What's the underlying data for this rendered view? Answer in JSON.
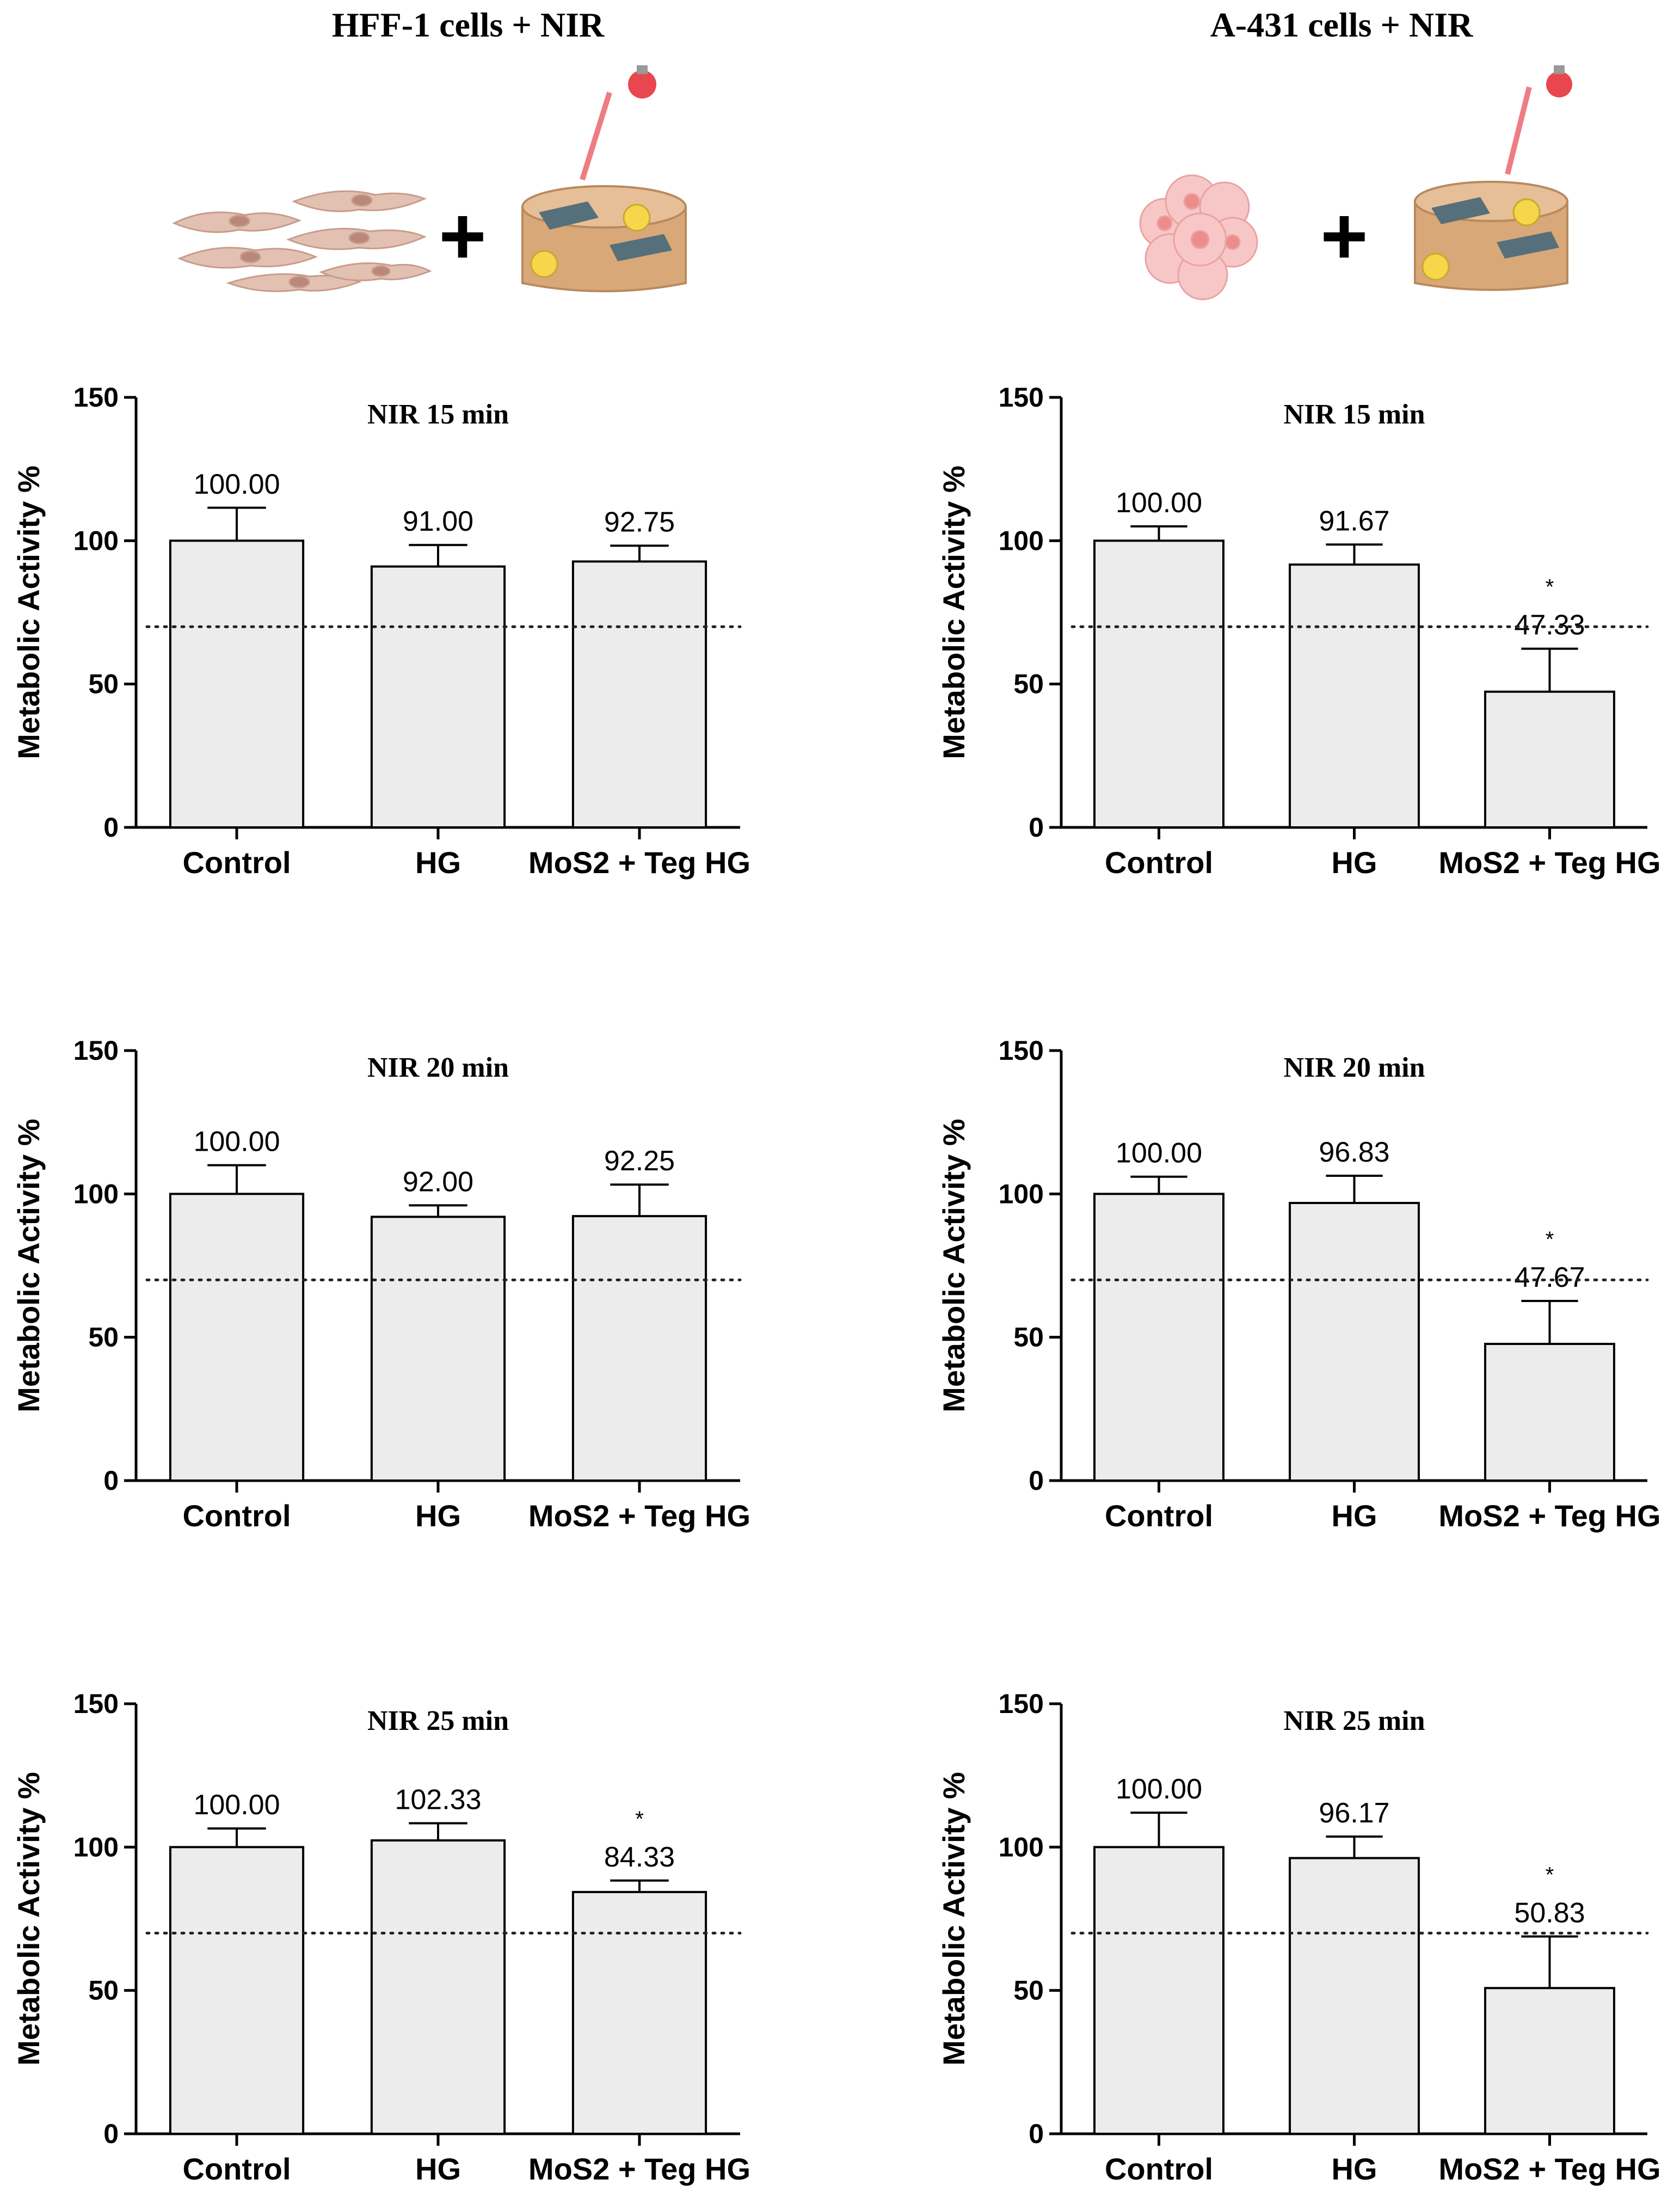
{
  "columns": [
    {
      "title": "HFF-1 cells + NIR",
      "cell_icon": "fibroblast-cells-icon"
    },
    {
      "title": "A-431 cells + NIR",
      "cell_icon": "tumor-cell-cluster-icon"
    }
  ],
  "illustration": {
    "plus_sign": "+",
    "device_icon": "hydrogel-dish-with-nir-lamp-icon",
    "bar_color": "#ececec",
    "lamp_color": "#e8474f"
  },
  "chart_data": [
    {
      "type": "bar",
      "title": "NIR 15 min",
      "ylabel": "Metabolic Activity %",
      "ylim": [
        0,
        150
      ],
      "yticks": [
        0,
        50,
        100,
        150
      ],
      "threshold": 70,
      "categories": [
        "Control",
        "HG",
        "MoS2 + Teg HG"
      ],
      "values": [
        100.0,
        91.0,
        92.75
      ],
      "errors": [
        11.5,
        7.5,
        5.5
      ],
      "value_labels": [
        "100.00",
        "91.00",
        "92.75"
      ],
      "significance": [
        "",
        "",
        ""
      ]
    },
    {
      "type": "bar",
      "title": "NIR 15 min",
      "ylabel": "Metabolic Activity %",
      "ylim": [
        0,
        150
      ],
      "yticks": [
        0,
        50,
        100,
        150
      ],
      "threshold": 70,
      "categories": [
        "Control",
        "HG",
        "MoS2 + Teg HG"
      ],
      "values": [
        100.0,
        91.67,
        47.33
      ],
      "errors": [
        5,
        7,
        15
      ],
      "value_labels": [
        "100.00",
        "91.67",
        "47.33"
      ],
      "significance": [
        "",
        "",
        "*"
      ]
    },
    {
      "type": "bar",
      "title": "NIR 20 min",
      "ylabel": "Metabolic Activity %",
      "ylim": [
        0,
        150
      ],
      "yticks": [
        0,
        50,
        100,
        150
      ],
      "threshold": 70,
      "categories": [
        "Control",
        "HG",
        "MoS2 + Teg HG"
      ],
      "values": [
        100.0,
        92.0,
        92.25
      ],
      "errors": [
        10,
        4,
        11
      ],
      "value_labels": [
        "100.00",
        "92.00",
        "92.25"
      ],
      "significance": [
        "",
        "",
        ""
      ]
    },
    {
      "type": "bar",
      "title": "NIR 20 min",
      "ylabel": "Metabolic Activity %",
      "ylim": [
        0,
        150
      ],
      "yticks": [
        0,
        50,
        100,
        150
      ],
      "threshold": 70,
      "categories": [
        "Control",
        "HG",
        "MoS2 + Teg HG"
      ],
      "values": [
        100.0,
        96.83,
        47.67
      ],
      "errors": [
        6,
        9.5,
        15
      ],
      "value_labels": [
        "100.00",
        "96.83",
        "47.67"
      ],
      "significance": [
        "",
        "",
        "*"
      ]
    },
    {
      "type": "bar",
      "title": "NIR 25 min",
      "ylabel": "Metabolic Activity %",
      "ylim": [
        0,
        150
      ],
      "yticks": [
        0,
        50,
        100,
        150
      ],
      "threshold": 70,
      "categories": [
        "Control",
        "HG",
        "MoS2 + Teg HG"
      ],
      "values": [
        100.0,
        102.33,
        84.33
      ],
      "errors": [
        6.5,
        6,
        4
      ],
      "value_labels": [
        "100.00",
        "102.33",
        "84.33"
      ],
      "significance": [
        "",
        "",
        "*"
      ]
    },
    {
      "type": "bar",
      "title": "NIR 25 min",
      "ylabel": "Metabolic Activity %",
      "ylim": [
        0,
        150
      ],
      "yticks": [
        0,
        50,
        100,
        150
      ],
      "threshold": 70,
      "categories": [
        "Control",
        "HG",
        "MoS2 + Teg HG"
      ],
      "values": [
        100.0,
        96.17,
        50.83
      ],
      "errors": [
        12,
        7.5,
        18
      ],
      "value_labels": [
        "100.00",
        "96.17",
        "50.83"
      ],
      "significance": [
        "",
        "",
        "*"
      ]
    }
  ]
}
